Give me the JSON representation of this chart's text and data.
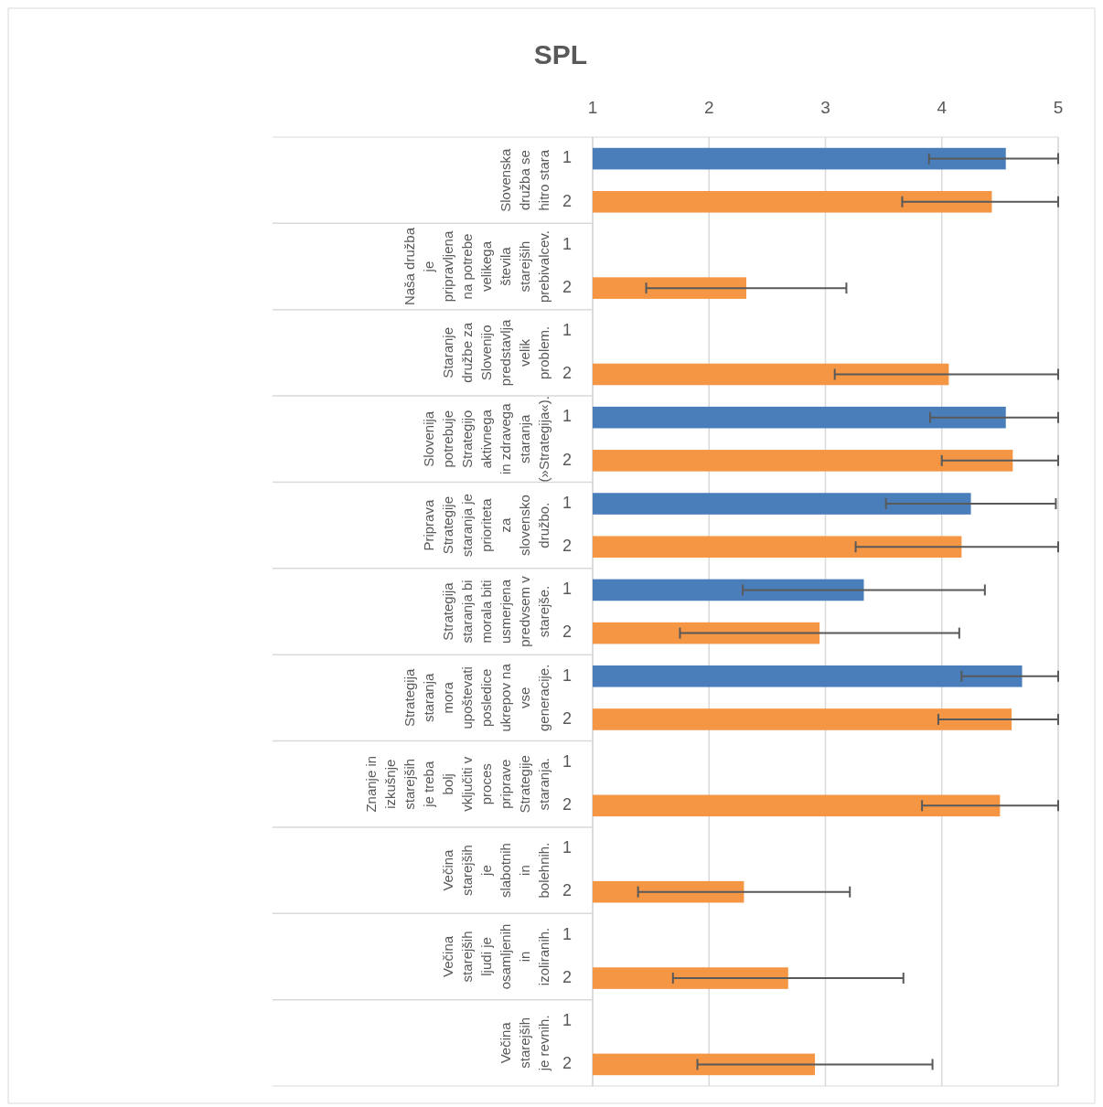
{
  "chart_data": {
    "type": "bar",
    "title": "SPL",
    "orientation": "horizontal",
    "grid": "x",
    "categories": [
      "Slovenska družba se hitro stara",
      "Naša družba je pripravljena na potrebe velikega števila starejših prebivalcev.",
      "Staranje družbe za Slovenijo predstavlja velik problem.",
      "Slovenija potrebuje Strategijo aktivnega in zdravega staranja (»Strategija«).",
      "Priprava Strategije staranja je prioriteta za slovensko družbo.",
      "Strategija staranja bi morala biti usmerjena predvsem v starejše.",
      "Strategija staranja mora upoštevati posledice ukrepov na vse generacije.",
      "Znanje in izkušnje starejših je treba bolj vključiti v proces priprave Strategije staranja.",
      "Večina starejših je slabotnih in bolehnih.",
      "Večina starejših ljudi je osamljenih in izoliranih.",
      "Večina starejših je revnih."
    ],
    "xlim": [
      1,
      5
    ],
    "xticks": [
      1,
      2,
      3,
      4,
      5
    ],
    "series": [
      {
        "name": "1",
        "color": "#4a7ebb",
        "values": [
          4.55,
          null,
          null,
          4.55,
          4.25,
          3.33,
          4.69,
          null,
          null,
          null,
          null
        ],
        "errors": [
          [
            3.89,
            5
          ],
          null,
          null,
          [
            3.9,
            5
          ],
          0.73,
          1.04,
          [
            4.17,
            5
          ],
          null,
          null,
          null,
          null
        ]
      },
      {
        "name": "2",
        "color": "#f59645",
        "values": [
          4.43,
          2.32,
          4.06,
          4.61,
          4.17,
          2.95,
          4.6,
          4.5,
          2.3,
          2.68,
          2.91
        ],
        "errors": [
          [
            3.66,
            5
          ],
          0.86,
          [
            3.08,
            5
          ],
          [
            4,
            5
          ],
          [
            3.26,
            5
          ],
          1.2,
          [
            3.97,
            5
          ],
          [
            3.83,
            5
          ],
          0.91,
          0.99,
          1.01
        ]
      }
    ]
  }
}
